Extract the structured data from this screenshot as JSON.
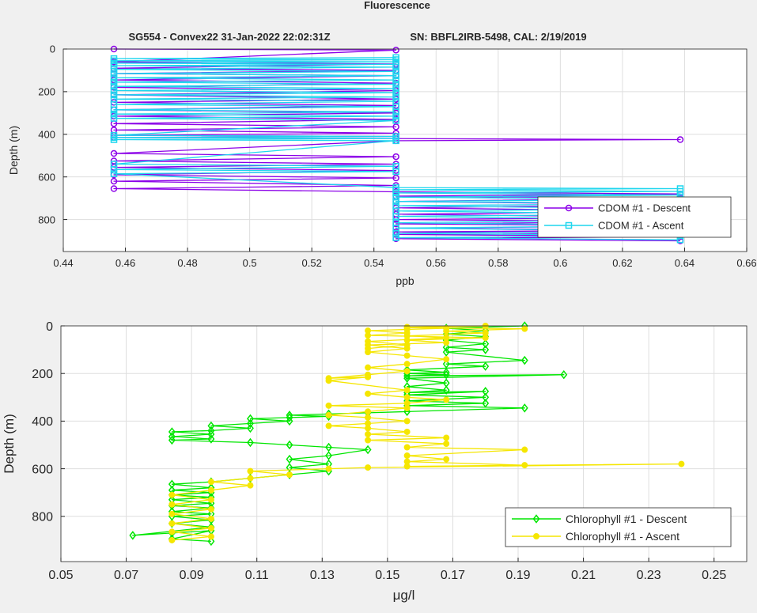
{
  "figure_title": "Fluorescence",
  "subtitle_left": "SG554 - Convex22 31-Jan-2022 22:02:31Z",
  "subtitle_right": "SN: BBFL2IRB-5498, CAL: 2/19/2019",
  "colors": {
    "cdom_descent": "#8b00e8",
    "cdom_ascent": "#1ed6ee",
    "chl_descent": "#00e600",
    "chl_ascent": "#f5e600",
    "grid": "#dedede",
    "axis": "#262626"
  },
  "chart_data": [
    {
      "type": "line",
      "xlabel": "ppb",
      "ylabel": "Depth (m)",
      "xlim": [
        0.44,
        0.66
      ],
      "ylim": [
        0,
        950
      ],
      "y_reversed": true,
      "xticks": [
        0.44,
        0.46,
        0.48,
        0.5,
        0.52,
        0.54,
        0.56,
        0.58,
        0.6,
        0.62,
        0.64,
        0.66
      ],
      "xtick_labels": [
        "0.44",
        "0.46",
        "0.48",
        "0.5",
        "0.52",
        "0.54",
        "0.56",
        "0.58",
        "0.6",
        "0.62",
        "0.64",
        "0.66"
      ],
      "yticks": [
        0,
        200,
        400,
        600,
        800
      ],
      "grid": true,
      "legend_position": "bottom-right",
      "series": [
        {
          "name": "CDOM #1 - Descent",
          "marker": "circle",
          "color_key": "cdom_descent",
          "x": [
            0.4563,
            0.5471,
            0.4563,
            0.5471,
            0.4563,
            0.5471,
            0.4563,
            0.5471,
            0.4563,
            0.5471,
            0.4563,
            0.5471,
            0.4563,
            0.5471,
            0.4563,
            0.5471,
            0.4563,
            0.5471,
            0.4563,
            0.5471,
            0.4563,
            0.5471,
            0.4563,
            0.5471,
            0.4563,
            0.5471,
            0.4563,
            0.5471,
            0.6386,
            0.5471,
            0.4563,
            0.5471,
            0.4563,
            0.5471,
            0.4563,
            0.5471,
            0.4563,
            0.5471,
            0.4563,
            0.5471,
            0.4563,
            0.5471,
            0.6386,
            0.5471,
            0.6386,
            0.5471,
            0.6386,
            0.5471,
            0.6386,
            0.5471,
            0.6386,
            0.5471,
            0.6386,
            0.5471,
            0.6386,
            0.5471,
            0.6386,
            0.5471,
            0.6386,
            0.5471,
            0.6386,
            0.5471,
            0.6386
          ],
          "y": [
            0,
            5,
            60,
            70,
            90,
            100,
            115,
            125,
            145,
            160,
            180,
            195,
            215,
            235,
            250,
            265,
            285,
            300,
            315,
            330,
            350,
            365,
            380,
            395,
            405,
            410,
            415,
            420,
            425,
            430,
            490,
            505,
            525,
            540,
            555,
            570,
            590,
            605,
            620,
            640,
            655,
            670,
            680,
            690,
            700,
            715,
            730,
            745,
            760,
            775,
            790,
            800,
            810,
            820,
            830,
            840,
            850,
            858,
            865,
            870,
            880,
            890,
            900
          ]
        },
        {
          "name": "CDOM #1 - Ascent",
          "marker": "square",
          "color_key": "cdom_ascent",
          "x": [
            0.6386,
            0.5471,
            0.6386,
            0.5471,
            0.6386,
            0.5471,
            0.6386,
            0.5471,
            0.6386,
            0.5471,
            0.6386,
            0.5471,
            0.6386,
            0.5471,
            0.6386,
            0.5471,
            0.6386,
            0.5471,
            0.6386,
            0.5471,
            0.6386,
            0.5471,
            0.6386,
            0.5471,
            0.4563,
            0.5471,
            0.4563,
            0.5471,
            0.4563,
            0.5471,
            0.4563,
            0.5471,
            0.4563,
            0.5471,
            0.4563,
            0.5471,
            0.4563,
            0.5471,
            0.4563,
            0.5471,
            0.4563,
            0.5471,
            0.4563,
            0.5471,
            0.4563,
            0.5471,
            0.4563,
            0.5471,
            0.4563,
            0.5471,
            0.4563,
            0.5471,
            0.4563,
            0.5471,
            0.4563,
            0.5471,
            0.4563,
            0.5471,
            0.4563,
            0.5471,
            0.4563,
            0.5471,
            0.4563,
            0.5471,
            0.4563,
            0.5471,
            0.4563,
            0.5471
          ],
          "y": [
            895,
            885,
            875,
            865,
            855,
            840,
            828,
            815,
            800,
            785,
            775,
            760,
            750,
            735,
            725,
            715,
            705,
            695,
            685,
            675,
            668,
            660,
            655,
            650,
            585,
            575,
            565,
            550,
            540,
            430,
            425,
            420,
            415,
            410,
            405,
            335,
            325,
            315,
            305,
            295,
            285,
            270,
            260,
            245,
            235,
            225,
            215,
            205,
            195,
            185,
            175,
            165,
            155,
            145,
            135,
            125,
            115,
            105,
            95,
            85,
            78,
            72,
            66,
            60,
            55,
            50,
            45,
            40
          ]
        }
      ]
    },
    {
      "type": "line",
      "xlabel": "μg/l",
      "ylabel": "Depth (m)",
      "xlim": [
        0.05,
        0.26
      ],
      "ylim": [
        0,
        990
      ],
      "y_reversed": true,
      "xticks": [
        0.05,
        0.07,
        0.09,
        0.11,
        0.13,
        0.15,
        0.17,
        0.19,
        0.21,
        0.23,
        0.25
      ],
      "xtick_labels": [
        "0.05",
        "0.07",
        "0.09",
        "0.11",
        "0.13",
        "0.15",
        "0.17",
        "0.19",
        "0.21",
        "0.23",
        "0.25"
      ],
      "yticks": [
        0,
        200,
        400,
        600,
        800
      ],
      "grid": true,
      "legend_position": "bottom-right",
      "series": [
        {
          "name": "Chlorophyll #1 - Descent",
          "marker": "diamond",
          "color_key": "chl_descent",
          "x": [
            0.192,
            0.168,
            0.18,
            0.168,
            0.18,
            0.168,
            0.18,
            0.168,
            0.18,
            0.168,
            0.192,
            0.168,
            0.18,
            0.156,
            0.168,
            0.156,
            0.168,
            0.156,
            0.204,
            0.156,
            0.168,
            0.156,
            0.168,
            0.156,
            0.18,
            0.156,
            0.18,
            0.156,
            0.18,
            0.156,
            0.192,
            0.156,
            0.144,
            0.132,
            0.12,
            0.132,
            0.12,
            0.108,
            0.12,
            0.108,
            0.096,
            0.108,
            0.096,
            0.084,
            0.096,
            0.084,
            0.096,
            0.084,
            0.108,
            0.12,
            0.132,
            0.144,
            0.132,
            0.12,
            0.132,
            0.12,
            0.132,
            0.12,
            0.108,
            0.096,
            0.084,
            0.096,
            0.084,
            0.096,
            0.084,
            0.096,
            0.084,
            0.096,
            0.084,
            0.096,
            0.084,
            0.096,
            0.084,
            0.096,
            0.084,
            0.096,
            0.072,
            0.084,
            0.096,
            0.084,
            0.096
          ],
          "y": [
            0,
            10,
            20,
            35,
            45,
            60,
            75,
            90,
            100,
            110,
            145,
            160,
            170,
            185,
            195,
            200,
            205,
            210,
            205,
            220,
            240,
            255,
            270,
            280,
            275,
            290,
            300,
            315,
            325,
            335,
            345,
            360,
            365,
            370,
            375,
            380,
            385,
            390,
            400,
            410,
            420,
            430,
            440,
            445,
            455,
            465,
            475,
            480,
            490,
            500,
            510,
            520,
            545,
            560,
            580,
            595,
            610,
            625,
            640,
            655,
            665,
            680,
            690,
            700,
            710,
            720,
            730,
            745,
            755,
            765,
            780,
            790,
            800,
            815,
            830,
            845,
            880,
            870,
            860,
            895,
            905
          ]
        },
        {
          "name": "Chlorophyll #1 - Ascent",
          "marker": "circle",
          "color_key": "chl_ascent",
          "x": [
            0.084,
            0.096,
            0.084,
            0.096,
            0.084,
            0.096,
            0.084,
            0.096,
            0.084,
            0.096,
            0.084,
            0.096,
            0.108,
            0.096,
            0.108,
            0.12,
            0.108,
            0.132,
            0.144,
            0.24,
            0.156,
            0.192,
            0.156,
            0.168,
            0.156,
            0.192,
            0.156,
            0.168,
            0.144,
            0.168,
            0.144,
            0.156,
            0.144,
            0.132,
            0.144,
            0.156,
            0.144,
            0.132,
            0.144,
            0.156,
            0.132,
            0.156,
            0.168,
            0.156,
            0.144,
            0.156,
            0.132,
            0.144,
            0.132,
            0.144,
            0.156,
            0.144,
            0.156,
            0.168,
            0.156,
            0.144,
            0.156,
            0.144,
            0.168,
            0.156,
            0.18,
            0.144,
            0.156,
            0.144,
            0.156,
            0.168,
            0.156,
            0.18,
            0.156,
            0.192,
            0.168,
            0.18,
            0.156,
            0.168,
            0.144,
            0.156,
            0.144
          ],
          "y": [
            900,
            885,
            865,
            850,
            830,
            810,
            790,
            770,
            750,
            730,
            710,
            690,
            670,
            655,
            640,
            625,
            610,
            600,
            595,
            580,
            590,
            585,
            570,
            560,
            545,
            520,
            510,
            495,
            480,
            470,
            455,
            445,
            430,
            420,
            410,
            400,
            385,
            375,
            360,
            345,
            335,
            325,
            310,
            300,
            285,
            270,
            230,
            215,
            220,
            205,
            190,
            175,
            160,
            140,
            125,
            110,
            95,
            80,
            70,
            60,
            50,
            40,
            30,
            20,
            15,
            10,
            5,
            0,
            8,
            12,
            22,
            30,
            42,
            50,
            65,
            80,
            95
          ]
        }
      ]
    }
  ]
}
